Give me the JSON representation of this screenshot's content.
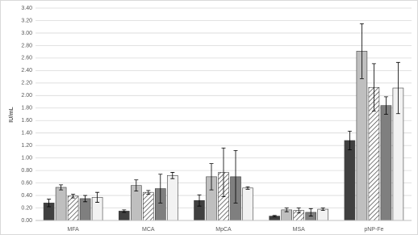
{
  "chart_data": {
    "type": "bar",
    "y_label": "IU/mL",
    "categories": [
      "MFA",
      "MCA",
      "MpCA",
      "MSA",
      "pNP-Fe"
    ],
    "series": [
      {
        "color": "#404040",
        "values": [
          0.28,
          0.15,
          0.32,
          0.07,
          1.28
        ],
        "errors": [
          0.06,
          0.02,
          0.09,
          0.01,
          0.15
        ]
      },
      {
        "color": "#bfbfbf",
        "values": [
          0.53,
          0.56,
          0.7,
          0.17,
          2.71
        ],
        "errors": [
          0.04,
          0.09,
          0.21,
          0.03,
          0.44
        ]
      },
      {
        "color": "#ffffff",
        "hatch": true,
        "values": [
          0.39,
          0.45,
          0.77,
          0.16,
          2.13
        ],
        "errors": [
          0.03,
          0.03,
          0.39,
          0.04,
          0.38
        ]
      },
      {
        "color": "#7f7f7f",
        "values": [
          0.35,
          0.51,
          0.7,
          0.13,
          1.84
        ],
        "errors": [
          0.05,
          0.23,
          0.42,
          0.06,
          0.14
        ]
      },
      {
        "color": "#f2f2f2",
        "values": [
          0.37,
          0.72,
          0.52,
          0.18,
          2.12
        ],
        "errors": [
          0.08,
          0.05,
          0.02,
          0.02,
          0.41
        ]
      }
    ],
    "ylim": [
      0,
      3.4
    ],
    "yticks": [
      {
        "value": 0,
        "label": "0.00"
      },
      {
        "value": 0.2,
        "label": "0.20"
      },
      {
        "value": 0.4,
        "label": "0.40"
      },
      {
        "value": 0.6,
        "label": "0.60"
      },
      {
        "value": 0.8,
        "label": "0.80"
      },
      {
        "value": 1.0,
        "label": "1.00"
      },
      {
        "value": 1.2,
        "label": "1.20"
      },
      {
        "value": 1.4,
        "label": "1.40"
      },
      {
        "value": 1.6,
        "label": "1.60"
      },
      {
        "value": 1.8,
        "label": "1.80"
      },
      {
        "value": 2.0,
        "label": "2.00"
      },
      {
        "value": 2.2,
        "label": "2.20"
      },
      {
        "value": 2.4,
        "label": "2.40"
      },
      {
        "value": 2.6,
        "label": "2.60"
      },
      {
        "value": 2.8,
        "label": "2.80"
      },
      {
        "value": 3.0,
        "label": "3.00"
      },
      {
        "value": 3.2,
        "label": "3.20"
      },
      {
        "value": 3.4,
        "label": "3.40"
      }
    ],
    "grid": true
  }
}
